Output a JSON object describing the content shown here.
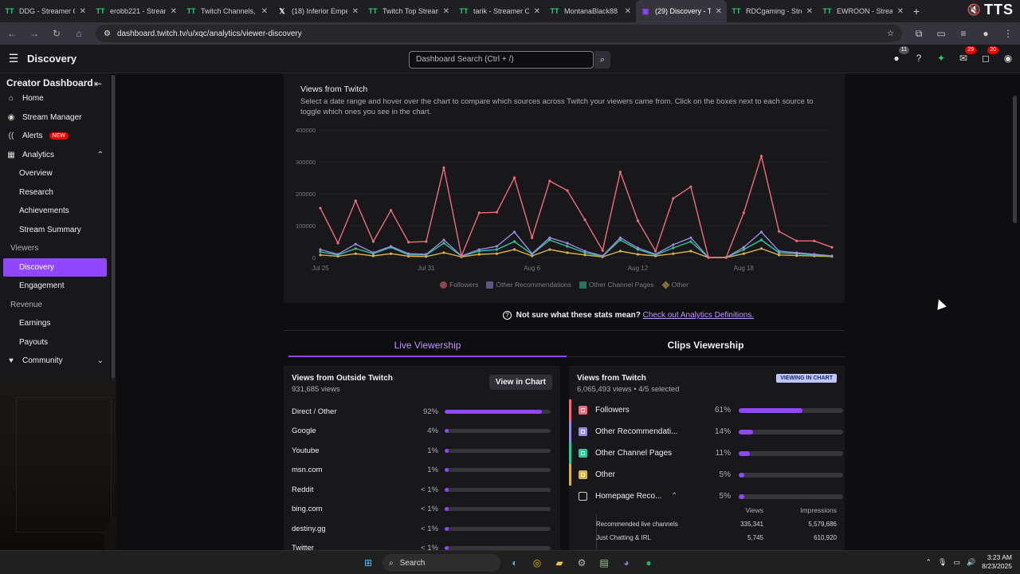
{
  "browser": {
    "tabs": [
      {
        "label": "DDG - Streamer O",
        "icon": "streamer-site-icon"
      },
      {
        "label": "erobb221 - Stream",
        "icon": "streamer-site-icon"
      },
      {
        "label": "Twitch Channels, C",
        "icon": "streamer-site-icon"
      },
      {
        "label": "(18) Inferior Empe",
        "icon": "x-icon"
      },
      {
        "label": "Twitch Top Stream",
        "icon": "streamer-site-icon"
      },
      {
        "label": "tarik - Streamer O",
        "icon": "streamer-site-icon"
      },
      {
        "label": "MontanaBlack88",
        "icon": "streamer-site-icon"
      },
      {
        "label": "(29) Discovery - Tw",
        "icon": "twitch-icon",
        "active": true
      },
      {
        "label": "RDCgaming - Stre",
        "icon": "streamer-site-icon"
      },
      {
        "label": "EWROON - Stream",
        "icon": "streamer-site-icon"
      }
    ],
    "url": "dashboard.twitch.tv/u/xqc/analytics/viewer-discovery",
    "tts_label": "TTS"
  },
  "topnav": {
    "title": "Discovery",
    "search_placeholder": "Dashboard Search (Ctrl + /)",
    "badges": {
      "viewers": "11",
      "inbox": "29",
      "notifications": "20"
    }
  },
  "sidebar": {
    "title": "Creator Dashboard",
    "home": "Home",
    "stream_manager": "Stream Manager",
    "alerts": "Alerts",
    "alerts_badge": "NEW",
    "analytics": "Analytics",
    "analytics_items": [
      "Overview",
      "Research",
      "Achievements",
      "Stream Summary"
    ],
    "viewers_section": "Viewers",
    "viewers_items": [
      "Discovery",
      "Engagement"
    ],
    "revenue_section": "Revenue",
    "revenue_items": [
      "Earnings",
      "Payouts"
    ],
    "community": "Community"
  },
  "card": {
    "title": "Views from Twitch",
    "description": "Select a date range and hover over the chart to compare which sources across Twitch your viewers came from. Click on the boxes next to each source to toggle which ones you see in the chart."
  },
  "chart_data": {
    "type": "line",
    "x_tick_labels": [
      "Jul 25",
      "Jul 31",
      "Aug 6",
      "Aug 12",
      "Aug 18"
    ],
    "x_tick_index": [
      0,
      6,
      12,
      18,
      24
    ],
    "y_ticks": [
      0,
      100000,
      200000,
      300000,
      400000
    ],
    "ylim": [
      0,
      400000
    ],
    "legend": "bottom",
    "grid": true,
    "series": [
      {
        "name": "Followers",
        "color": "#f06b7d",
        "values": [
          155000,
          45000,
          178000,
          50000,
          148000,
          48000,
          50000,
          282000,
          5000,
          140000,
          142000,
          250000,
          62000,
          240000,
          210000,
          118000,
          22000,
          268000,
          115000,
          20000,
          185000,
          222000,
          0,
          0,
          140000,
          318000,
          82000,
          52000,
          52000,
          32000
        ]
      },
      {
        "name": "Other Recommendations",
        "color": "#9a8ae0",
        "values": [
          25000,
          10000,
          42000,
          15000,
          35000,
          12000,
          10000,
          55000,
          5000,
          25000,
          35000,
          80000,
          12000,
          62000,
          45000,
          20000,
          5000,
          62000,
          30000,
          10000,
          40000,
          62000,
          0,
          0,
          32000,
          80000,
          20000,
          15000,
          10000,
          5000
        ]
      },
      {
        "name": "Other Channel Pages",
        "color": "#34c49a",
        "values": [
          18000,
          8000,
          28000,
          12000,
          32000,
          8000,
          8000,
          45000,
          4000,
          20000,
          25000,
          50000,
          10000,
          55000,
          35000,
          15000,
          4000,
          55000,
          25000,
          8000,
          30000,
          50000,
          0,
          0,
          25000,
          55000,
          15000,
          12000,
          8000,
          4000
        ]
      },
      {
        "name": "Other",
        "color": "#d8b24a",
        "values": [
          8000,
          4000,
          12000,
          5000,
          12000,
          4000,
          3000,
          15000,
          2000,
          10000,
          12000,
          25000,
          5000,
          25000,
          15000,
          8000,
          2000,
          20000,
          10000,
          5000,
          12000,
          20000,
          0,
          0,
          12000,
          28000,
          8000,
          6000,
          5000,
          3000
        ]
      }
    ]
  },
  "help": {
    "text": "Not sure what these stats mean?",
    "link": "Check out Analytics Definitions."
  },
  "view_tabs": {
    "live": "Live Viewership",
    "clips": "Clips Viewership"
  },
  "outside": {
    "title": "Views from Outside Twitch",
    "subtitle": "931,685 views",
    "button": "View in Chart",
    "rows": [
      {
        "name": "Direct / Other",
        "pct": "92%",
        "value": 0.92
      },
      {
        "name": "Google",
        "pct": "4%",
        "value": 0.04
      },
      {
        "name": "Youtube",
        "pct": "1%",
        "value": 0.01
      },
      {
        "name": "msn.com",
        "pct": "1%",
        "value": 0.01
      },
      {
        "name": "Reddit",
        "pct": "< 1%",
        "value": 0.005
      },
      {
        "name": "bing.com",
        "pct": "< 1%",
        "value": 0.005
      },
      {
        "name": "destiny.gg",
        "pct": "< 1%",
        "value": 0.005
      },
      {
        "name": "Twitter",
        "pct": "< 1%",
        "value": 0.005
      }
    ]
  },
  "inside": {
    "title": "Views from Twitch",
    "subtitle": "6,065,493 views • 4/5 selected",
    "tag": "VIEWING IN CHART",
    "rows": [
      {
        "name": "Followers",
        "pct": "61%",
        "value": 0.61,
        "color": "#f06b7d"
      },
      {
        "name": "Other Recommendati...",
        "pct": "14%",
        "value": 0.14,
        "color": "#9a8ae0"
      },
      {
        "name": "Other Channel Pages",
        "pct": "11%",
        "value": 0.11,
        "color": "#34c49a"
      },
      {
        "name": "Other",
        "pct": "5%",
        "value": 0.05,
        "color": "#d8b24a"
      },
      {
        "name": "Homepage Reco...",
        "pct": "5%",
        "value": 0.05,
        "color": ""
      }
    ],
    "subtable": {
      "headers": [
        "Views",
        "Impressions"
      ],
      "rows": [
        {
          "name": "Recommended live channels",
          "views": "335,341",
          "impressions": "5,579,686"
        },
        {
          "name": "Just Chatting & IRL",
          "views": "5,745",
          "impressions": "610,920"
        }
      ]
    }
  },
  "taskbar": {
    "search": "Search",
    "time": "3:23 AM",
    "date": "8/23/2025"
  }
}
